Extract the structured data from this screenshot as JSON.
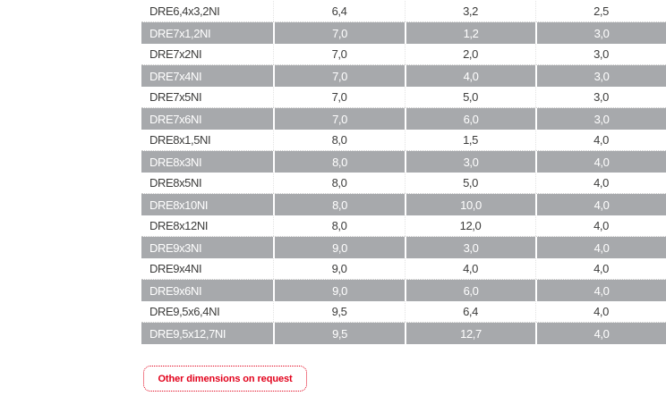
{
  "colors": {
    "band": "#a7a9ac",
    "text": "#3c3c3b",
    "accent": "#e2001a"
  },
  "table": {
    "rows": [
      {
        "code": "DRE6,4x3,2NI",
        "d1": "6,4",
        "d2": "3,2",
        "d3": "2,5"
      },
      {
        "code": "DRE7x1,2NI",
        "d1": "7,0",
        "d2": "1,2",
        "d3": "3,0"
      },
      {
        "code": "DRE7x2NI",
        "d1": "7,0",
        "d2": "2,0",
        "d3": "3,0"
      },
      {
        "code": "DRE7x4NI",
        "d1": "7,0",
        "d2": "4,0",
        "d3": "3,0"
      },
      {
        "code": "DRE7x5NI",
        "d1": "7,0",
        "d2": "5,0",
        "d3": "3,0"
      },
      {
        "code": "DRE7x6NI",
        "d1": "7,0",
        "d2": "6,0",
        "d3": "3,0"
      },
      {
        "code": "DRE8x1,5NI",
        "d1": "8,0",
        "d2": "1,5",
        "d3": "4,0"
      },
      {
        "code": "DRE8x3NI",
        "d1": "8,0",
        "d2": "3,0",
        "d3": "4,0"
      },
      {
        "code": "DRE8x5NI",
        "d1": "8,0",
        "d2": "5,0",
        "d3": "4,0"
      },
      {
        "code": "DRE8x10NI",
        "d1": "8,0",
        "d2": "10,0",
        "d3": "4,0"
      },
      {
        "code": "DRE8x12NI",
        "d1": "8,0",
        "d2": "12,0",
        "d3": "4,0"
      },
      {
        "code": "DRE9x3NI",
        "d1": "9,0",
        "d2": "3,0",
        "d3": "4,0"
      },
      {
        "code": "DRE9x4NI",
        "d1": "9,0",
        "d2": "4,0",
        "d3": "4,0"
      },
      {
        "code": "DRE9x6NI",
        "d1": "9,0",
        "d2": "6,0",
        "d3": "4,0"
      },
      {
        "code": "DRE9,5x6,4NI",
        "d1": "9,5",
        "d2": "6,4",
        "d3": "4,0"
      },
      {
        "code": "DRE9,5x12,7NI",
        "d1": "9,5",
        "d2": "12,7",
        "d3": "4,0"
      }
    ]
  },
  "note": {
    "label": "Other dimensions on request"
  }
}
